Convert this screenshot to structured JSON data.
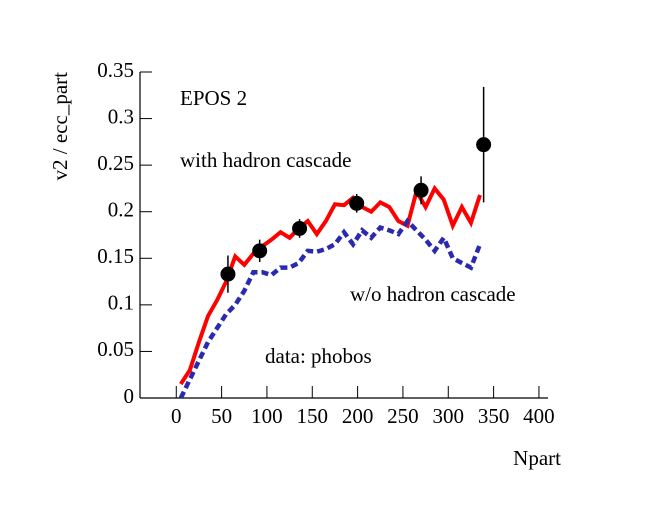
{
  "chart_data": {
    "type": "line",
    "title": "EPOS 2",
    "x_label": "Npart",
    "y_label": "v2 / ecc_part",
    "xlim": [
      -40,
      410
    ],
    "ylim": [
      0,
      0.35
    ],
    "xticks": [
      0,
      50,
      100,
      150,
      200,
      250,
      300,
      350,
      400
    ],
    "yticks": [
      0,
      0.05,
      0.1,
      0.15,
      0.2,
      0.25,
      0.3,
      0.35
    ],
    "series": [
      {
        "name": "with hadron cascade",
        "color": "#ff0000",
        "style": "solid",
        "x": [
          5,
          15,
          25,
          35,
          45,
          55,
          65,
          75,
          85,
          95,
          105,
          115,
          125,
          135,
          145,
          155,
          165,
          175,
          185,
          195,
          205,
          215,
          225,
          235,
          245,
          255,
          265,
          275,
          285,
          295,
          305,
          315,
          325,
          335
        ],
        "values": [
          0.015,
          0.03,
          0.06,
          0.088,
          0.105,
          0.125,
          0.152,
          0.143,
          0.155,
          0.163,
          0.17,
          0.178,
          0.172,
          0.182,
          0.19,
          0.176,
          0.19,
          0.208,
          0.207,
          0.215,
          0.205,
          0.2,
          0.21,
          0.205,
          0.19,
          0.185,
          0.222,
          0.205,
          0.225,
          0.213,
          0.185,
          0.205,
          0.188,
          0.218
        ]
      },
      {
        "name": "w/o hadron cascade",
        "color": "#2a2ab0",
        "style": "dashed",
        "x": [
          5,
          15,
          25,
          35,
          45,
          55,
          65,
          75,
          85,
          95,
          105,
          115,
          125,
          135,
          145,
          155,
          165,
          175,
          185,
          195,
          205,
          215,
          225,
          235,
          245,
          255,
          265,
          275,
          285,
          295,
          305,
          315,
          325,
          335
        ],
        "values": [
          0.0,
          0.02,
          0.04,
          0.06,
          0.075,
          0.09,
          0.1,
          0.115,
          0.135,
          0.135,
          0.132,
          0.14,
          0.14,
          0.145,
          0.158,
          0.157,
          0.16,
          0.165,
          0.178,
          0.165,
          0.18,
          0.172,
          0.183,
          0.18,
          0.176,
          0.19,
          0.18,
          0.17,
          0.158,
          0.172,
          0.15,
          0.145,
          0.14,
          0.165
        ]
      },
      {
        "name": "data: phobos",
        "color": "#000000",
        "style": "points",
        "x": [
          57,
          92,
          136,
          199,
          270,
          339
        ],
        "values": [
          0.133,
          0.158,
          0.182,
          0.209,
          0.223,
          0.272
        ],
        "errors": [
          0.02,
          0.012,
          0.01,
          0.01,
          0.015,
          0.062
        ]
      }
    ]
  }
}
